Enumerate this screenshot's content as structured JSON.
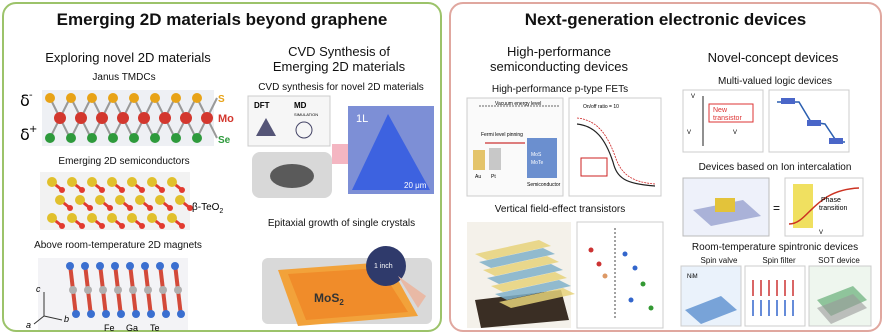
{
  "left": {
    "title": "Emerging 2D materials beyond graphene",
    "col1": {
      "heading": "Exploring novel 2D materials",
      "janus": {
        "label": "Janus TMDCs",
        "delta_minus": "δ",
        "delta_minus_sup": "-",
        "delta_plus": "δ",
        "delta_plus_sup": "+",
        "s": "S",
        "mo": "Mo",
        "se": "Se"
      },
      "semis": {
        "label": "Emerging 2D semiconductors",
        "compound": "β-TeO",
        "compound_sub": "2"
      },
      "magnets": {
        "label": "Above room-temperature 2D magnets",
        "axis_c": "c",
        "axis_a": "a",
        "axis_b": "b",
        "fe": "Fe",
        "ga": "Ga",
        "te": "Te"
      }
    },
    "col2": {
      "heading_line1": "CVD Synthesis of",
      "heading_line2": "Emerging 2D materials",
      "cvd": {
        "label": "CVD synthesis for novel 2D materials",
        "dft": "DFT",
        "md": "MD",
        "md_sub": "SIMULATION",
        "layer": "1L",
        "scale": "20 μm"
      },
      "epi": {
        "label": "Epitaxial growth of single crystals",
        "material": "MoS",
        "material_sub": "2",
        "inch": "1 inch"
      }
    }
  },
  "right": {
    "title": "Next-generation electronic devices",
    "col1": {
      "heading_line1": "High-performance",
      "heading_line2": "semiconducting devices",
      "pfet": {
        "label": "High-performance  p-type FETs",
        "vacuum": "Vacuum energy level",
        "fermi": "Fermi level pinning",
        "semi": "Semiconductor",
        "mos2": "MoS",
        "wse2": "MoTe",
        "au": "Au",
        "pt": "Pt",
        "on_off": "On/off ratio = 10"
      },
      "vfet": {
        "label": "Vertical field-effect transistors"
      }
    },
    "col2": {
      "heading": "Novel-concept devices",
      "mvl": {
        "label": "Multi-valued logic devices",
        "new": "New",
        "transistor": "transistor",
        "vdd": "V",
        "vout": "V",
        "vin": "V"
      },
      "ion": {
        "label": "Devices based on Ion intercalation",
        "phase": "Phase",
        "transition": "transition",
        "vg": "V",
        "equals": "="
      },
      "spin": {
        "label": "Room-temperature spintronic devices",
        "valve": "Spin valve",
        "filter": "Spin filter",
        "sot": "SOT device",
        "nim": "NiM"
      }
    }
  },
  "colors": {
    "left_border": "#9cc36a",
    "right_border": "#e0a79f",
    "te": "#e23b30",
    "s": "#e8a317",
    "se": "#2e9a3c",
    "mo": "#d3372e"
  }
}
